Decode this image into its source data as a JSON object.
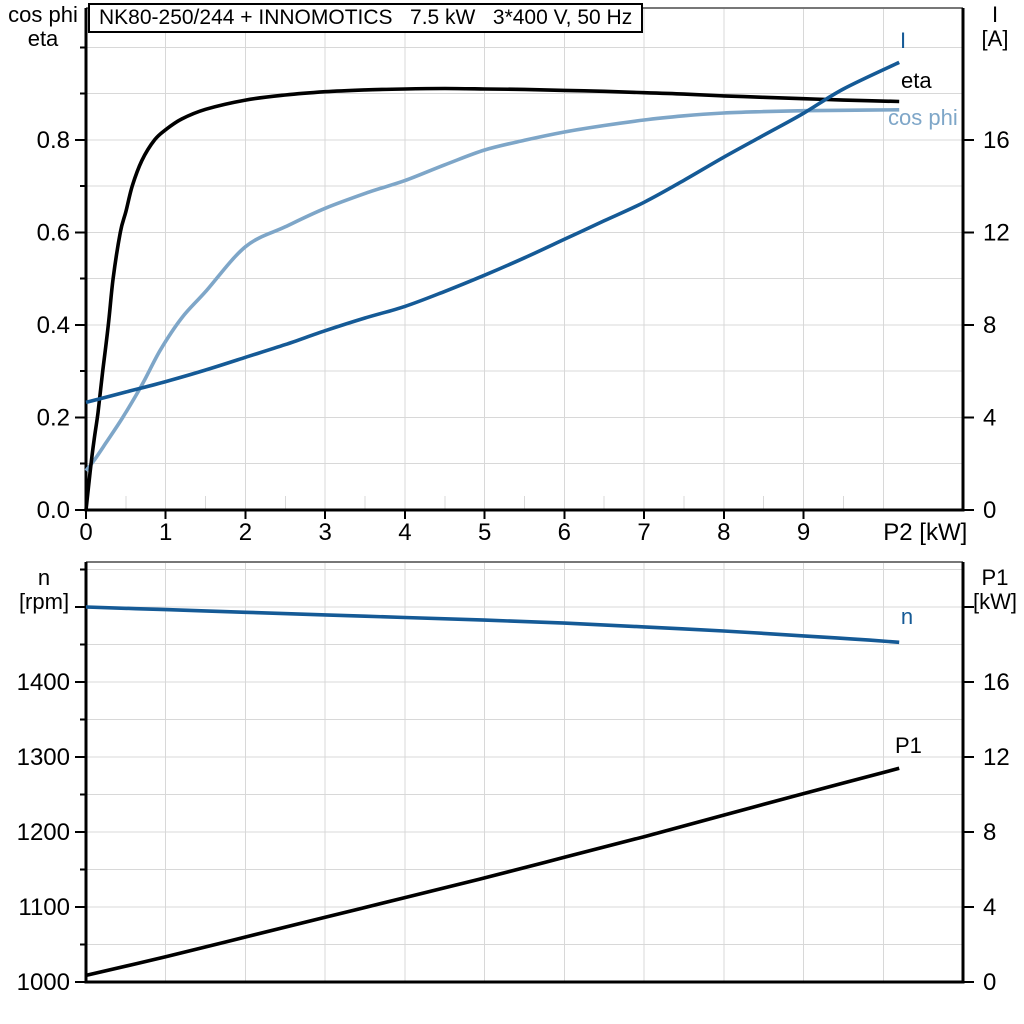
{
  "title": "NK80-250/244 + INNOMOTICS   7.5 kW   3*400 V, 50 Hz",
  "colors": {
    "dark_blue": "#155A96",
    "light_blue": "#7EA6C8",
    "curve_black": "#000000",
    "grid": "#D8D8D8",
    "plot_border": "#777777",
    "axis": "#000000"
  },
  "chart_data": [
    {
      "id": "motor-performance",
      "type": "line",
      "title": "NK80-250/244 + INNOMOTICS   7.5 kW   3*400 V, 50 Hz",
      "xlabel": "P2 [kW]",
      "xlim": [
        0,
        11
      ],
      "x_tick_values": [
        0,
        1,
        2,
        3,
        4,
        5,
        6,
        7,
        8,
        9
      ],
      "x_tick_labels": [
        "0",
        "1",
        "2",
        "3",
        "4",
        "5",
        "6",
        "7",
        "8",
        "9"
      ],
      "grid": "on",
      "left_axis": {
        "title_line1": "cos phi",
        "title_line2": "eta",
        "lim": [
          0,
          1.085
        ],
        "tick_values": [
          0,
          0.2,
          0.4,
          0.6,
          0.8
        ],
        "tick_labels": [
          "0.0",
          "0.2",
          "0.4",
          "0.6",
          "0.8"
        ],
        "minor_step": 0.1
      },
      "right_axis": {
        "title_line1": "I",
        "title_line2": "[A]",
        "lim": [
          0,
          21.7
        ],
        "tick_values": [
          0,
          4,
          8,
          12,
          16
        ],
        "tick_labels": [
          "0",
          "4",
          "8",
          "12",
          "16"
        ],
        "minor_step": 2
      },
      "series": [
        {
          "name": "cos_phi",
          "label": "cos phi",
          "axis": "left",
          "color": "#7EA6C8",
          "points": [
            [
              0,
              0.085
            ],
            [
              0.1,
              0.107
            ],
            [
              0.25,
              0.145
            ],
            [
              0.46,
              0.2
            ],
            [
              0.7,
              0.27
            ],
            [
              0.93,
              0.345
            ],
            [
              1.2,
              0.415
            ],
            [
              1.5,
              0.472
            ],
            [
              2,
              0.569
            ],
            [
              2.5,
              0.612
            ],
            [
              3,
              0.652
            ],
            [
              3.55,
              0.687
            ],
            [
              4,
              0.712
            ],
            [
              4.5,
              0.746
            ],
            [
              5,
              0.778
            ],
            [
              5.5,
              0.799
            ],
            [
              6,
              0.817
            ],
            [
              6.5,
              0.831
            ],
            [
              7,
              0.843
            ],
            [
              7.5,
              0.852
            ],
            [
              8,
              0.858
            ],
            [
              8.5,
              0.861
            ],
            [
              9,
              0.863
            ],
            [
              9.5,
              0.864
            ],
            [
              10.2,
              0.865
            ]
          ]
        },
        {
          "name": "eta",
          "label": "eta",
          "axis": "left",
          "color": "#000000",
          "points": [
            [
              0,
              0
            ],
            [
              0.05,
              0.08
            ],
            [
              0.1,
              0.15
            ],
            [
              0.15,
              0.21
            ],
            [
              0.21,
              0.3
            ],
            [
              0.28,
              0.4
            ],
            [
              0.34,
              0.5
            ],
            [
              0.43,
              0.6
            ],
            [
              0.5,
              0.645
            ],
            [
              0.58,
              0.7
            ],
            [
              0.7,
              0.755
            ],
            [
              0.86,
              0.8
            ],
            [
              1,
              0.822
            ],
            [
              1.2,
              0.845
            ],
            [
              1.5,
              0.866
            ],
            [
              2,
              0.886
            ],
            [
              2.5,
              0.897
            ],
            [
              3,
              0.904
            ],
            [
              3.5,
              0.908
            ],
            [
              4,
              0.91
            ],
            [
              4.5,
              0.911
            ],
            [
              5,
              0.91
            ],
            [
              5.5,
              0.909
            ],
            [
              6,
              0.907
            ],
            [
              6.5,
              0.905
            ],
            [
              7,
              0.902
            ],
            [
              7.5,
              0.899
            ],
            [
              8,
              0.895
            ],
            [
              8.5,
              0.892
            ],
            [
              9,
              0.889
            ],
            [
              9.5,
              0.886
            ],
            [
              10.2,
              0.883
            ]
          ]
        },
        {
          "name": "I",
          "label": "I",
          "axis": "right",
          "color": "#155A96",
          "points": [
            [
              0,
              4.65
            ],
            [
              0.5,
              5.1
            ],
            [
              1,
              5.55
            ],
            [
              1.5,
              6.05
            ],
            [
              2,
              6.6
            ],
            [
              2.5,
              7.15
            ],
            [
              3,
              7.75
            ],
            [
              3.5,
              8.3
            ],
            [
              4,
              8.8
            ],
            [
              4.5,
              9.45
            ],
            [
              5,
              10.15
            ],
            [
              5.5,
              10.9
            ],
            [
              6,
              11.7
            ],
            [
              6.5,
              12.5
            ],
            [
              7,
              13.3
            ],
            [
              7.5,
              14.25
            ],
            [
              8,
              15.25
            ],
            [
              8.5,
              16.2
            ],
            [
              9,
              17.15
            ],
            [
              9.5,
              18.2
            ],
            [
              10.2,
              19.35
            ]
          ]
        }
      ]
    },
    {
      "id": "speed-power",
      "type": "line",
      "title": "",
      "xlabel": "",
      "xlim": [
        0,
        11
      ],
      "x_tick_values": [],
      "x_tick_labels": [],
      "grid": "on",
      "left_axis": {
        "title_line1": "n",
        "title_line2": "[rpm]",
        "lim": [
          1000,
          1560
        ],
        "tick_values": [
          1000,
          1100,
          1200,
          1300,
          1400
        ],
        "tick_labels": [
          "1000",
          "1100",
          "1200",
          "1300",
          "1400"
        ],
        "extra_tick_values": [
          1500
        ],
        "minor_step": 50
      },
      "right_axis": {
        "title_line1": "P1",
        "title_line2": "[kW]",
        "lim": [
          0,
          22.4
        ],
        "tick_values": [
          0,
          4,
          8,
          12,
          16
        ],
        "tick_labels": [
          "0",
          "4",
          "8",
          "12",
          "16"
        ],
        "extra_tick_values": [
          20
        ],
        "minor_step": 2
      },
      "series": [
        {
          "name": "n",
          "label": "n",
          "axis": "left",
          "color": "#155A96",
          "points": [
            [
              0,
              1500
            ],
            [
              1,
              1496.5
            ],
            [
              2,
              1493
            ],
            [
              3,
              1489.5
            ],
            [
              4,
              1486
            ],
            [
              5,
              1482.5
            ],
            [
              6,
              1478.5
            ],
            [
              7,
              1473.5
            ],
            [
              8,
              1468
            ],
            [
              9,
              1461.5
            ],
            [
              9.6,
              1457.5
            ],
            [
              10.2,
              1453
            ]
          ]
        },
        {
          "name": "P1",
          "label": "P1",
          "axis": "right",
          "color": "#000000",
          "points": [
            [
              0,
              0.35
            ],
            [
              1,
              1.35
            ],
            [
              2,
              2.4
            ],
            [
              3,
              3.45
            ],
            [
              4,
              4.5
            ],
            [
              5,
              5.55
            ],
            [
              6,
              6.65
            ],
            [
              7,
              7.75
            ],
            [
              8,
              8.9
            ],
            [
              9,
              10.05
            ],
            [
              10.2,
              11.4
            ]
          ]
        }
      ]
    }
  ]
}
